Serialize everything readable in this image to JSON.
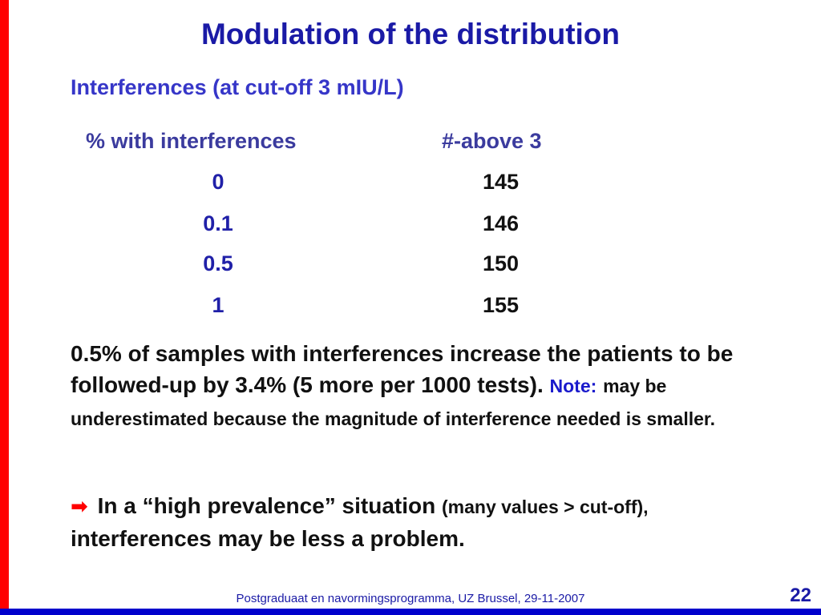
{
  "slide": {
    "title": "Modulation of the distribution",
    "subtitle": "Interferences (at cut-off 3 mIU/L)"
  },
  "table": {
    "headers": [
      "% with interferences",
      "#-above 3"
    ],
    "rows": [
      [
        "0",
        "145"
      ],
      [
        "0.1",
        "146"
      ],
      [
        "0.5",
        "150"
      ],
      [
        "1",
        "155"
      ]
    ]
  },
  "paragraph": {
    "main": "0.5% of samples with interferences increase the patients to be followed-up by 3.4% (5 more per 1000 tests).",
    "note_label": "Note:",
    "note_text": "may be underestimated because the magnitude of interference needed is smaller."
  },
  "conclusion": {
    "arrow": "➡",
    "text1": "In a “high prevalence” situation",
    "text_small": "(many values > cut-off),",
    "text2": "interferences may be less a problem."
  },
  "footer": {
    "text": "Postgraduaat en navormingsprogramma, UZ Brussel, 29-11-2007",
    "slide_number": "22"
  },
  "colors": {
    "left_bar": "#ff0000",
    "bottom_bar": "#0000cc",
    "title": "#1a1aa6",
    "subtitle": "#3636c8"
  }
}
